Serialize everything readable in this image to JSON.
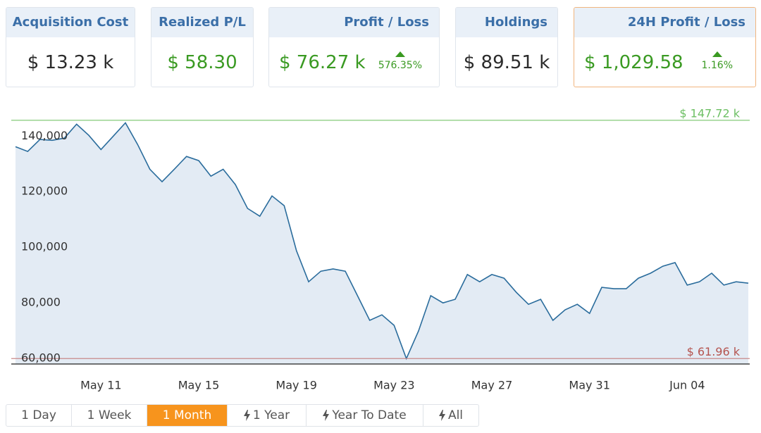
{
  "cards": [
    {
      "title": "Acquisition Cost",
      "value": "$ 13.23 k",
      "tone": "neutral"
    },
    {
      "title": "Realized P/L",
      "value": "$ 58.30",
      "tone": "positive"
    },
    {
      "title": "Profit / Loss",
      "value": "$ 76.27 k",
      "tone": "positive",
      "change": "576.35%",
      "trend": "up"
    },
    {
      "title": "Holdings",
      "value": "$ 89.51 k",
      "tone": "neutral"
    },
    {
      "title": "24H Profit / Loss",
      "value": "$ 1,029.58",
      "tone": "positive",
      "change": "1.16%",
      "trend": "up",
      "highlighted": true
    }
  ],
  "chart_data": {
    "type": "area",
    "color": "#2a6c9c",
    "fill": "#e3ebf4",
    "values": [
      138200,
      136500,
      140800,
      140500,
      141300,
      146300,
      142300,
      137200,
      142000,
      146800,
      139000,
      130100,
      125600,
      130100,
      134700,
      133200,
      127600,
      130100,
      124600,
      116000,
      113200,
      120500,
      117000,
      100800,
      89600,
      93400,
      94200,
      93400,
      84600,
      75700,
      77700,
      73900,
      61960,
      71900,
      84600,
      82000,
      83300,
      92200,
      89600,
      92200,
      90900,
      85800,
      81500,
      83300,
      75700,
      79500,
      81500,
      78200,
      87600,
      87100,
      87100,
      90900,
      92700,
      95200,
      96500,
      88400,
      89600,
      92700,
      88400,
      89600,
      89100
    ],
    "xlim": [
      0,
      60
    ],
    "xticks": [
      {
        "value": 7,
        "label": "May 11"
      },
      {
        "value": 15,
        "label": "May 15"
      },
      {
        "value": 23,
        "label": "May 19"
      },
      {
        "value": 31,
        "label": "May 23"
      },
      {
        "value": 39,
        "label": "May 27"
      },
      {
        "value": 47,
        "label": "May 31"
      },
      {
        "value": 55,
        "label": "Jun 04"
      }
    ],
    "ylim": [
      60000,
      153000
    ],
    "yticks": [
      {
        "value": 60000,
        "label": "60,000"
      },
      {
        "value": 80000,
        "label": "80,000"
      },
      {
        "value": 100000,
        "label": "100,000"
      },
      {
        "value": 120000,
        "label": "120,000"
      },
      {
        "value": 140000,
        "label": "140,000"
      }
    ],
    "grid": false,
    "reference_lines": [
      {
        "value": 147720,
        "label": "$ 147.72 k",
        "color": "#8fcf86",
        "text_color": "#6cbf63"
      },
      {
        "value": 61960,
        "label": "$ 61.96 k",
        "color": "#c98a8a",
        "text_color": "#b5544f"
      }
    ]
  },
  "range_buttons": [
    {
      "label": "1 Day"
    },
    {
      "label": "1 Week"
    },
    {
      "label": "1 Month"
    },
    {
      "label": "1 Year",
      "icon": "bolt"
    },
    {
      "label": "Year To Date",
      "icon": "bolt"
    },
    {
      "label": "All",
      "icon": "bolt"
    }
  ],
  "active_range": 2
}
